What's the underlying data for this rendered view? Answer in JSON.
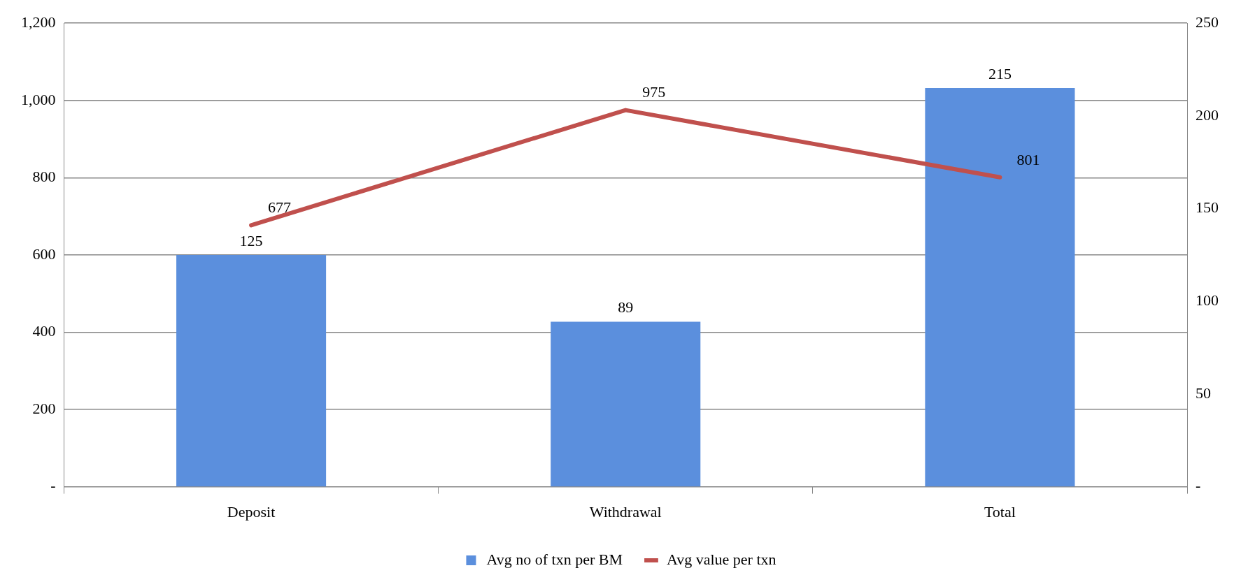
{
  "chart_data": {
    "type": "bar",
    "categories": [
      "Deposit",
      "Withdrawal",
      "Total"
    ],
    "series": [
      {
        "name": "Avg no of txn per BM",
        "axis": "y2",
        "color": "#5b8fdd",
        "values": [
          125,
          89,
          215
        ]
      },
      {
        "name": "Avg value per txn",
        "type": "line",
        "axis": "y",
        "color": "#c0504d",
        "values": [
          677,
          975,
          801
        ]
      }
    ],
    "ylim": [
      0,
      1200
    ],
    "yticks": [
      {
        "value": 0,
        "label": "-"
      },
      200,
      400,
      600,
      800,
      {
        "value": 1000,
        "label": "1,000"
      },
      {
        "value": 1200,
        "label": "1,200"
      }
    ],
    "y2lim": [
      0,
      250
    ],
    "y2ticks": [
      {
        "value": 0,
        "label": "-"
      },
      50,
      100,
      150,
      200,
      250
    ],
    "grid": "y",
    "legend": "bottom",
    "data_labels": true,
    "marker": "none"
  }
}
